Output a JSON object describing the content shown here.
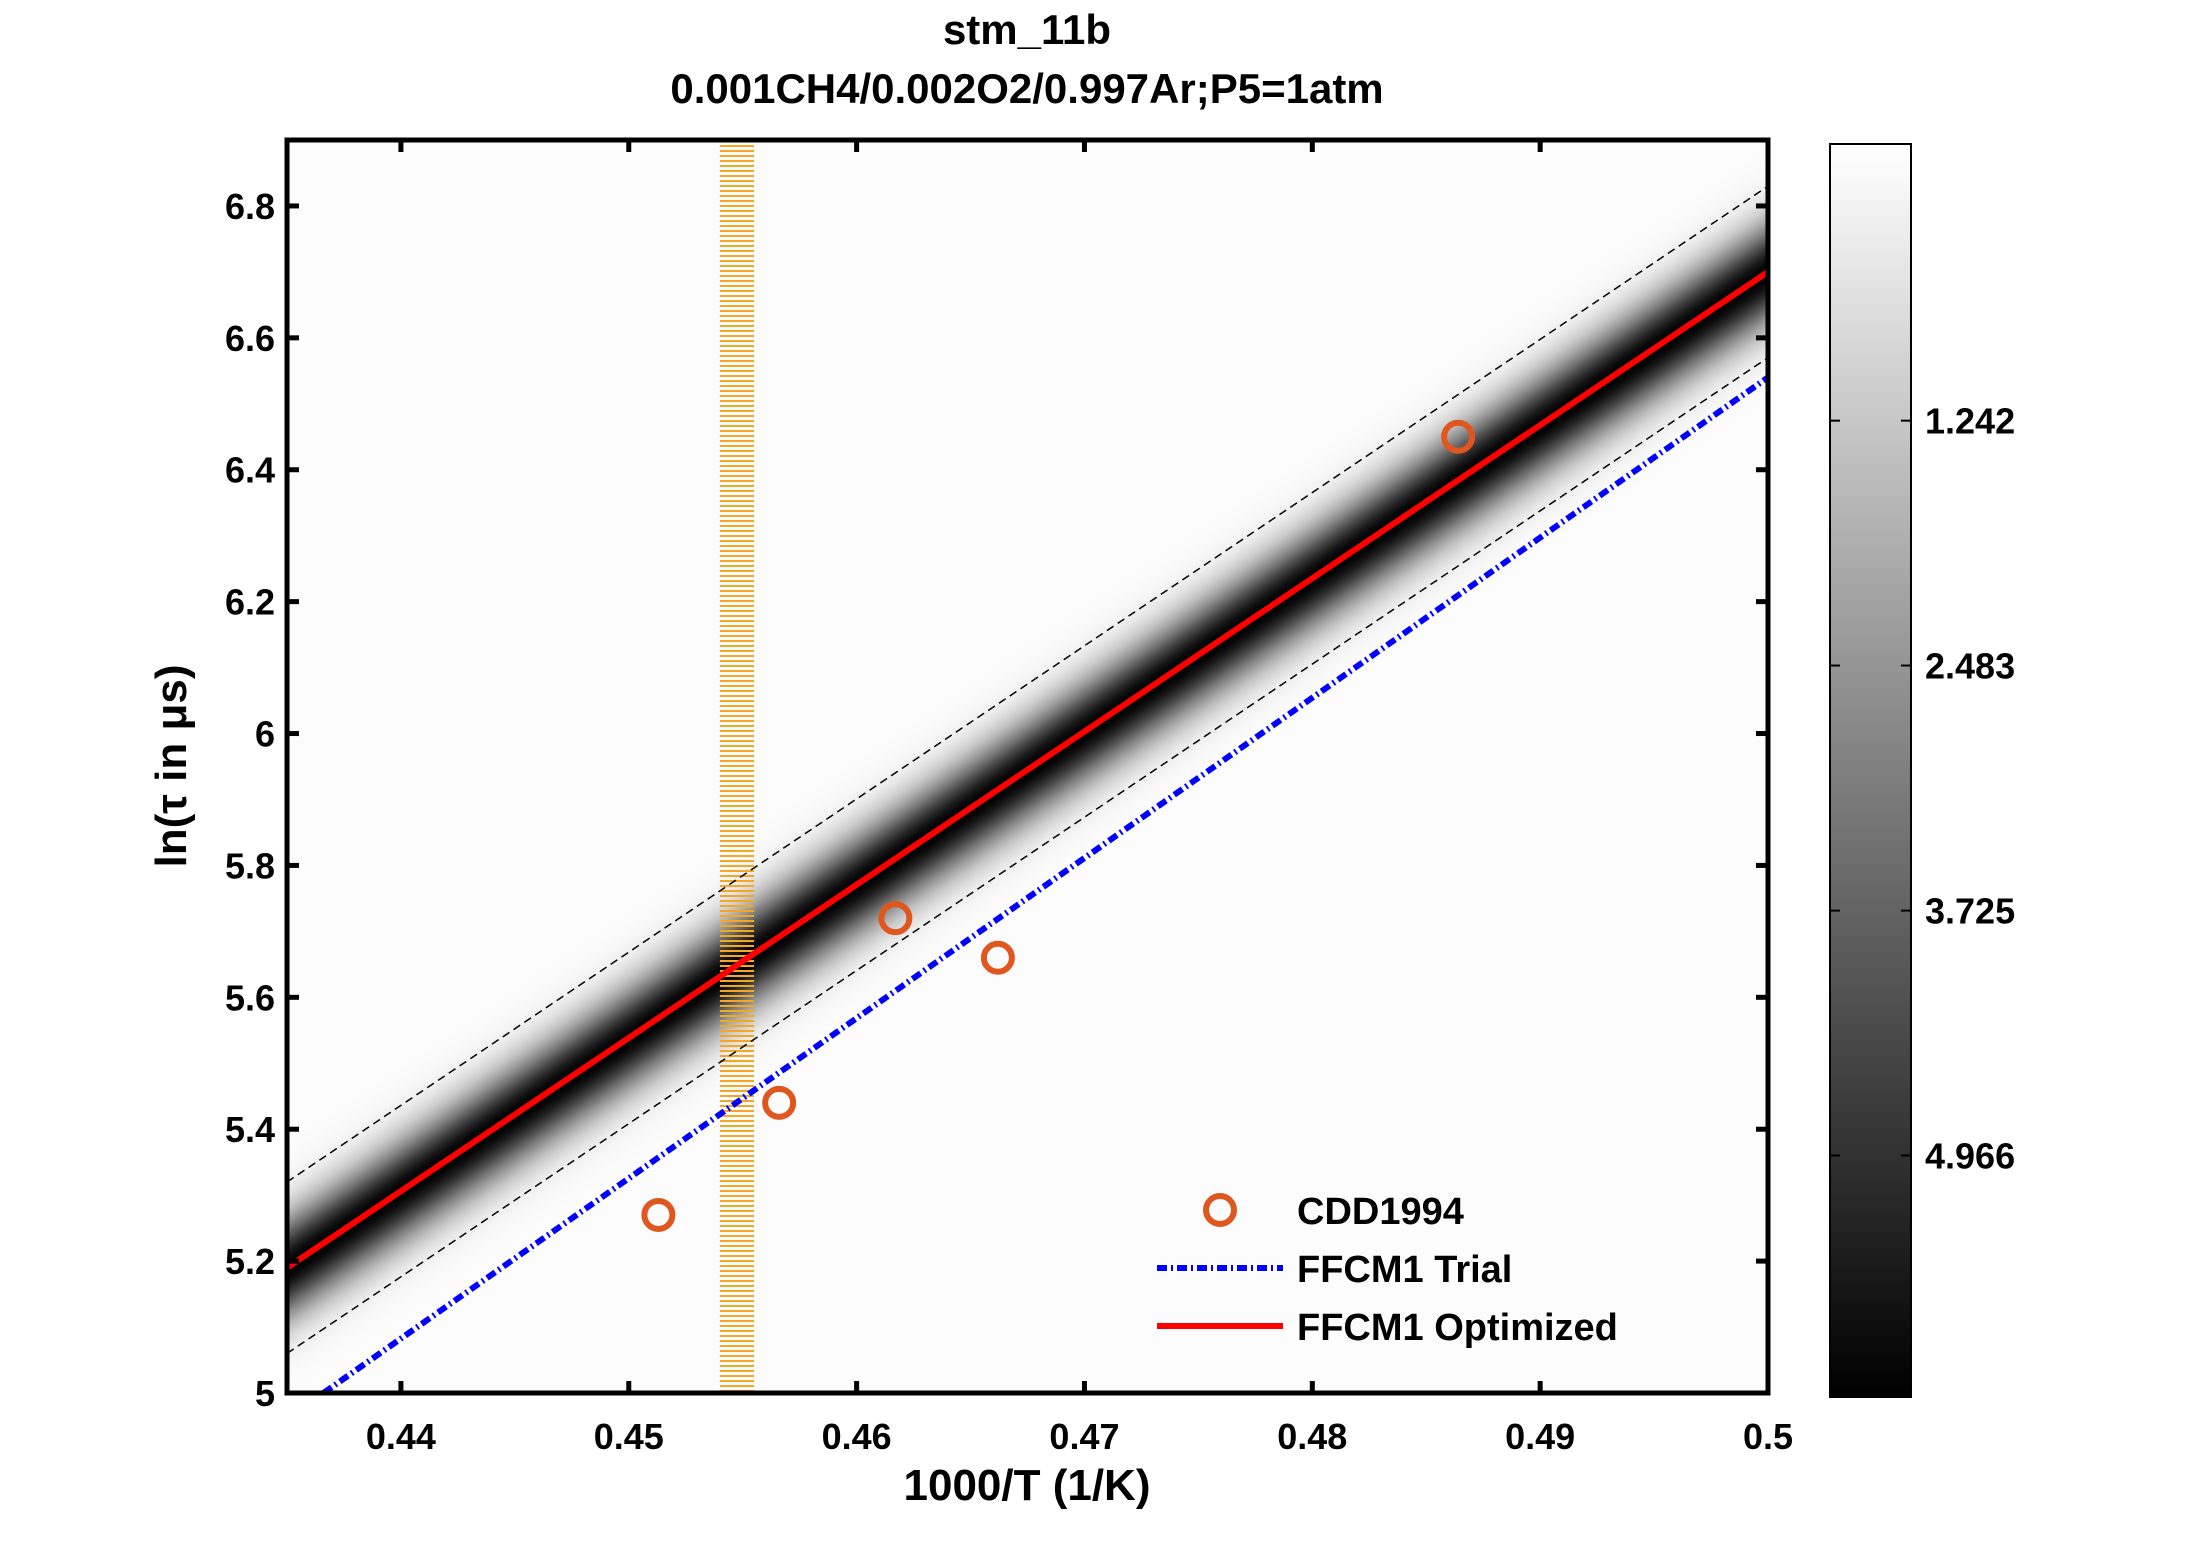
{
  "chart_data": {
    "type": "scatter",
    "title": "stm_11b",
    "subtitle": "0.001CH4/0.002O2/0.997Ar;P5=1atm",
    "xlabel": "1000/T (1/K)",
    "ylabel": "ln(τ in μs)",
    "xlim": [
      0.435,
      0.5
    ],
    "ylim": [
      5.0,
      6.9
    ],
    "xticks": [
      0.44,
      0.45,
      0.46,
      0.47,
      0.48,
      0.49,
      0.5
    ],
    "xtick_labels": [
      "0.44",
      "0.45",
      "0.46",
      "0.47",
      "0.48",
      "0.49",
      "0.5"
    ],
    "yticks": [
      5.0,
      5.2,
      5.4,
      5.6,
      5.8,
      6.0,
      6.2,
      6.4,
      6.6,
      6.8
    ],
    "ytick_labels": [
      "5",
      "5.2",
      "5.4",
      "5.6",
      "5.8",
      "6",
      "6.2",
      "6.4",
      "6.6",
      "6.8"
    ],
    "grid": false,
    "legend_placement": "bottom-right",
    "series": [
      {
        "name": "CDD1994",
        "kind": "scatter",
        "marker": "open-circle",
        "color": "#e0561f",
        "x": [
          0.4513,
          0.4566,
          0.4617,
          0.4662,
          0.4864
        ],
        "y": [
          5.27,
          5.44,
          5.72,
          5.66,
          6.45
        ]
      },
      {
        "name": "FFCM1 Trial",
        "kind": "line",
        "style": "dash-dot",
        "color": "#0000ff",
        "x": [
          0.4366,
          0.5
        ],
        "y": [
          5.0,
          6.54
        ]
      },
      {
        "name": "FFCM1 Optimized",
        "kind": "line",
        "style": "solid",
        "color": "#ff0000",
        "x": [
          0.435,
          0.5
        ],
        "y": [
          5.19,
          6.7
        ]
      }
    ],
    "uncertainty_bounds": {
      "style": "dashed",
      "color": "#000000",
      "upper": {
        "x": [
          0.435,
          0.5
        ],
        "y": [
          5.32,
          6.83
        ]
      },
      "lower": {
        "x": [
          0.435,
          0.5
        ],
        "y": [
          5.06,
          6.57
        ]
      }
    },
    "highlight_band": {
      "x_range": [
        0.454,
        0.4555
      ],
      "color": "#f5a623",
      "style": "hatched"
    },
    "density_shading": {
      "colormap": "gray",
      "center": "FFCM1 Optimized",
      "spread": 0.075
    },
    "colorbar": {
      "colormap": "gray-reversed",
      "clim": [
        -0.16,
        6.19
      ],
      "ticks": [
        1.242,
        2.483,
        3.725,
        4.966
      ],
      "tick_labels": [
        "1.242",
        "2.483",
        "3.725",
        "4.966"
      ]
    }
  }
}
